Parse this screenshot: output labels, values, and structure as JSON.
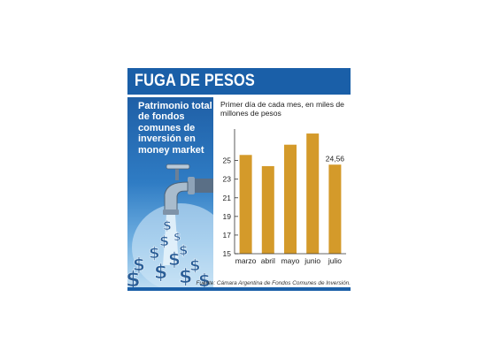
{
  "header": {
    "title": "FUGA DE PESOS"
  },
  "subtitle": "Patrimonio total de fondos comunes de inversión en money market",
  "source": "Fuente: Cámara Argentina de Fondos Comunes de Inversión.",
  "colors": {
    "header": "#1a5fa8",
    "bar": "#d49a2a",
    "panel": "#2f7cc4"
  },
  "icons": [
    "faucet-icon",
    "money-symbols-icon"
  ],
  "chart_data": {
    "type": "bar",
    "title": "Primer día de cada mes, en miles de millones de pesos",
    "categories": [
      "marzo",
      "abril",
      "mayo",
      "junio",
      "julio"
    ],
    "values": [
      25.6,
      24.4,
      26.7,
      27.9,
      24.56
    ],
    "data_labels": [
      null,
      null,
      null,
      null,
      "24,56"
    ],
    "ylim": [
      15,
      28
    ],
    "yticks": [
      15,
      17,
      19,
      21,
      23,
      25
    ],
    "grid": false
  }
}
